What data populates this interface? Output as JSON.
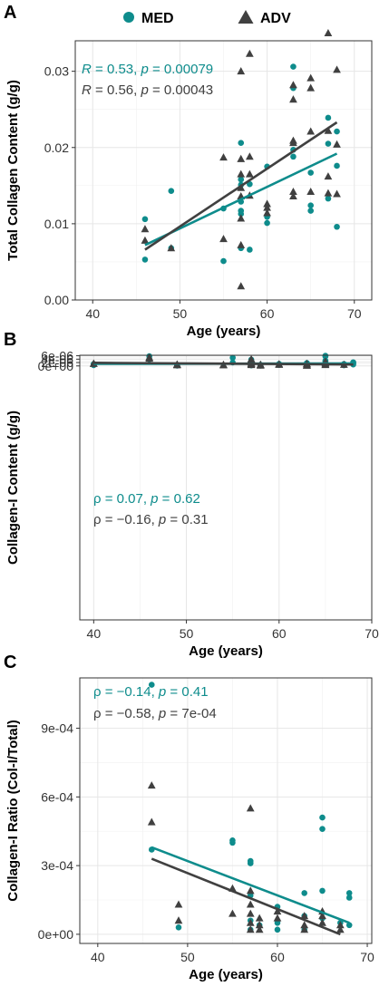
{
  "legend": {
    "items": [
      {
        "label": "MED",
        "marker": "circle",
        "color": "#0E8C8C"
      },
      {
        "label": "ADV",
        "marker": "triangle",
        "color": "#404040"
      }
    ]
  },
  "colors": {
    "med": "#0E8C8C",
    "adv": "#404040",
    "grid": "#e6e6e6"
  },
  "chart_data": [
    {
      "panel": "A",
      "type": "scatter",
      "xlabel": "Age (years)",
      "ylabel": "Total Collagen Content (g/g)",
      "xlim": [
        38,
        72
      ],
      "ylim": [
        0,
        0.034
      ],
      "xticks": [
        40,
        50,
        60,
        70
      ],
      "xtick_labels": [
        "40",
        "50",
        "60",
        "70"
      ],
      "yticks": [
        0,
        0.01,
        0.02,
        0.03
      ],
      "ytick_labels": [
        "0.00",
        "0.01",
        "0.02",
        "0.03"
      ],
      "annotations": [
        {
          "series": "MED",
          "parts": [
            {
              "t": "R",
              "i": true
            },
            {
              "t": " = 0.53, "
            },
            {
              "t": "p",
              "i": true
            },
            {
              "t": " = 0.00079"
            }
          ]
        },
        {
          "series": "ADV",
          "parts": [
            {
              "t": "R",
              "i": true
            },
            {
              "t": " = 0.56, "
            },
            {
              "t": "p",
              "i": true
            },
            {
              "t": " = 0.00043"
            }
          ]
        }
      ],
      "series": [
        {
          "name": "MED",
          "marker": "circle",
          "points": [
            [
              46,
              0.0106
            ],
            [
              46,
              0.0053
            ],
            [
              49,
              0.0143
            ],
            [
              49,
              0.0068
            ],
            [
              55,
              0.0051
            ],
            [
              55,
              0.012
            ],
            [
              57,
              0.0206
            ],
            [
              57,
              0.0151
            ],
            [
              57,
              0.0129
            ],
            [
              57,
              0.0117
            ],
            [
              57,
              0.0113
            ],
            [
              57,
              0.0068
            ],
            [
              57,
              0.0158
            ],
            [
              58,
              0.0152
            ],
            [
              58,
              0.0066
            ],
            [
              60,
              0.0175
            ],
            [
              60,
              0.0109
            ],
            [
              60,
              0.0101
            ],
            [
              63,
              0.0306
            ],
            [
              63,
              0.0278
            ],
            [
              63,
              0.0197
            ],
            [
              63,
              0.0188
            ],
            [
              65,
              0.0167
            ],
            [
              65,
              0.0124
            ],
            [
              65,
              0.0117
            ],
            [
              67,
              0.0239
            ],
            [
              67,
              0.0205
            ],
            [
              67,
              0.0133
            ],
            [
              68,
              0.0221
            ],
            [
              68,
              0.0176
            ],
            [
              68,
              0.0096
            ]
          ],
          "fit": [
            [
              46,
              0.0072
            ],
            [
              68,
              0.0192
            ]
          ]
        },
        {
          "name": "ADV",
          "marker": "triangle",
          "points": [
            [
              46,
              0.0093
            ],
            [
              46,
              0.0078
            ],
            [
              49,
              0.0068
            ],
            [
              55,
              0.0187
            ],
            [
              55,
              0.008
            ],
            [
              57,
              0.03
            ],
            [
              57,
              0.0185
            ],
            [
              57,
              0.0165
            ],
            [
              57,
              0.0147
            ],
            [
              57,
              0.0136
            ],
            [
              57,
              0.0107
            ],
            [
              57,
              0.0072
            ],
            [
              57,
              0.0018
            ],
            [
              58,
              0.0323
            ],
            [
              58,
              0.0188
            ],
            [
              58,
              0.0165
            ],
            [
              58,
              0.0137
            ],
            [
              60,
              0.0126
            ],
            [
              60,
              0.0121
            ],
            [
              60,
              0.0114
            ],
            [
              63,
              0.0282
            ],
            [
              63,
              0.0263
            ],
            [
              63,
              0.0209
            ],
            [
              63,
              0.0206
            ],
            [
              63,
              0.0142
            ],
            [
              63,
              0.0136
            ],
            [
              65,
              0.0291
            ],
            [
              65,
              0.0278
            ],
            [
              65,
              0.0221
            ],
            [
              65,
              0.0142
            ],
            [
              67,
              0.035
            ],
            [
              67,
              0.0222
            ],
            [
              67,
              0.0162
            ],
            [
              67,
              0.014
            ],
            [
              68,
              0.0302
            ],
            [
              68,
              0.0204
            ],
            [
              68,
              0.0139
            ]
          ],
          "fit": [
            [
              46,
              0.0066
            ],
            [
              68,
              0.0233
            ]
          ]
        }
      ]
    },
    {
      "panel": "B",
      "type": "scatter",
      "xlabel": "Age (years)",
      "ylabel": "Collagen-I Content (g/g)",
      "xlim": [
        38.5,
        70
      ],
      "ylim": [
        -0.00015,
        6.3e-06
      ],
      "xticks": [
        40,
        50,
        60,
        70
      ],
      "xtick_labels": [
        "40",
        "50",
        "60",
        "70"
      ],
      "yticks": [
        0,
        2e-06,
        4e-06,
        6e-06
      ],
      "ytick_labels": [
        "0e+00",
        "2e-06",
        "4e-06",
        "6e-06"
      ],
      "annotations": [
        {
          "series": "MED",
          "parts": [
            {
              "t": "ρ = 0.07, "
            },
            {
              "t": "p",
              "i": true
            },
            {
              "t": " = 0.62"
            }
          ]
        },
        {
          "series": "ADV",
          "parts": [
            {
              "t": "ρ = −0.16, "
            },
            {
              "t": "p",
              "i": true
            },
            {
              "t": " = 0.31"
            }
          ]
        }
      ],
      "series": [
        {
          "name": "MED",
          "marker": "circle",
          "points": [
            [
              40,
              1.1e-06
            ],
            [
              40,
              9e-07
            ],
            [
              40,
              4.5e-07
            ],
            [
              46,
              5.75e-06
            ],
            [
              46,
              3.95e-06
            ],
            [
              49,
              3.8e-07
            ],
            [
              49,
              2e-07
            ],
            [
              55,
              4.85e-06
            ],
            [
              55,
              2.05e-06
            ],
            [
              57,
              3.72e-06
            ],
            [
              57,
              2.05e-06
            ],
            [
              57,
              1.1e-06
            ],
            [
              57,
              6e-07
            ],
            [
              57,
              3e-07
            ],
            [
              58,
              6.5e-07
            ],
            [
              58,
              2e-07
            ],
            [
              60,
              1.2e-06
            ],
            [
              60,
              6e-07
            ],
            [
              63,
              1.7e-06
            ],
            [
              63,
              1.2e-06
            ],
            [
              63,
              5e-07
            ],
            [
              65,
              5.98e-06
            ],
            [
              65,
              5.65e-06
            ],
            [
              65,
              3.05e-06
            ],
            [
              65,
              2.4e-06
            ],
            [
              67,
              1.15e-06
            ],
            [
              67,
              7e-07
            ],
            [
              67,
              4e-07
            ],
            [
              68,
              2.15e-06
            ],
            [
              68,
              1.7e-06
            ],
            [
              68,
              8.5e-07
            ]
          ],
          "fit": [
            [
              40,
              1.22e-06
            ],
            [
              68,
              1.43e-06
            ]
          ]
        },
        {
          "name": "ADV",
          "marker": "triangle",
          "points": [
            [
              40,
              1.4e-06
            ],
            [
              40,
              1.25e-06
            ],
            [
              46,
              4.98e-06
            ],
            [
              46,
              4.35e-06
            ],
            [
              49,
              8.8e-07
            ],
            [
              49,
              7.5e-07
            ],
            [
              49,
              6.3e-07
            ],
            [
              49,
              4.8e-07
            ],
            [
              54,
              6.8e-07
            ],
            [
              54,
              5.5e-07
            ],
            [
              54,
              4.5e-07
            ],
            [
              57,
              3.9e-06
            ],
            [
              57,
              3.75e-06
            ],
            [
              57,
              2.8e-06
            ],
            [
              57,
              2.3e-06
            ],
            [
              57,
              1.55e-06
            ],
            [
              57,
              1.2e-06
            ],
            [
              57,
              8e-07
            ],
            [
              57,
              6e-07
            ],
            [
              58,
              7.5e-07
            ],
            [
              58,
              6e-07
            ],
            [
              58,
              4.2e-07
            ],
            [
              58,
              2.8e-07
            ],
            [
              60,
              1.05e-06
            ],
            [
              60,
              9e-07
            ],
            [
              60,
              7e-07
            ],
            [
              63,
              1.3e-06
            ],
            [
              63,
              1.05e-06
            ],
            [
              63,
              5.5e-07
            ],
            [
              63,
              3.5e-07
            ],
            [
              63,
              2e-07
            ],
            [
              65,
              2.62e-06
            ],
            [
              65,
              2.05e-06
            ],
            [
              65,
              1.6e-06
            ],
            [
              65,
              1e-06
            ],
            [
              65,
              5.8e-07
            ],
            [
              67,
              7e-07
            ]
          ],
          "fit": [
            [
              40,
              1.83e-06
            ],
            [
              68,
              8.5e-07
            ]
          ]
        }
      ]
    },
    {
      "panel": "C",
      "type": "scatter",
      "xlabel": "Age (years)",
      "ylabel": "Collagen-I Ratio (Col-I/Total)",
      "xlim": [
        38,
        70.5
      ],
      "ylim": [
        -4e-05,
        0.00112
      ],
      "xticks": [
        40,
        50,
        60,
        70
      ],
      "xtick_labels": [
        "40",
        "50",
        "60",
        "70"
      ],
      "yticks": [
        0,
        0.0003,
        0.0006,
        0.0009
      ],
      "ytick_labels": [
        "0e+00",
        "3e-04",
        "6e-04",
        "9e-04"
      ],
      "annotations": [
        {
          "series": "MED",
          "parts": [
            {
              "t": "ρ = −0.14, "
            },
            {
              "t": "p",
              "i": true
            },
            {
              "t": " = 0.41"
            }
          ]
        },
        {
          "series": "ADV",
          "parts": [
            {
              "t": "ρ = −0.58, "
            },
            {
              "t": "p",
              "i": true
            },
            {
              "t": " = 7e-04"
            }
          ]
        }
      ],
      "series": [
        {
          "name": "MED",
          "marker": "circle",
          "points": [
            [
              46,
              0.00109
            ],
            [
              46,
              0.00037
            ],
            [
              49,
              3e-05
            ],
            [
              55,
              0.00041
            ],
            [
              55,
              0.0004
            ],
            [
              57,
              0.00032
            ],
            [
              57,
              0.00031
            ],
            [
              57,
              0.00017
            ],
            [
              57,
              6e-05
            ],
            [
              57,
              2e-05
            ],
            [
              58,
              4e-05
            ],
            [
              60,
              0.00012
            ],
            [
              60,
              5e-05
            ],
            [
              60,
              2e-05
            ],
            [
              63,
              0.00018
            ],
            [
              63,
              8e-05
            ],
            [
              63,
              2e-05
            ],
            [
              65,
              0.00051
            ],
            [
              65,
              0.00046
            ],
            [
              65,
              0.00019
            ],
            [
              65,
              7e-05
            ],
            [
              67,
              5e-05
            ],
            [
              68,
              0.00018
            ],
            [
              68,
              0.00016
            ],
            [
              68,
              4e-05
            ]
          ],
          "fit": [
            [
              46,
              0.00038
            ],
            [
              68,
              5e-05
            ]
          ]
        },
        {
          "name": "ADV",
          "marker": "triangle",
          "points": [
            [
              46,
              0.00065
            ],
            [
              46,
              0.00049
            ],
            [
              49,
              0.00013
            ],
            [
              49,
              6e-05
            ],
            [
              55,
              0.0002
            ],
            [
              55,
              9e-05
            ],
            [
              57,
              0.00055
            ],
            [
              57,
              0.00019
            ],
            [
              57,
              0.00013
            ],
            [
              57,
              9e-05
            ],
            [
              57,
              5e-05
            ],
            [
              57,
              2e-05
            ],
            [
              58,
              7e-05
            ],
            [
              58,
              4e-05
            ],
            [
              58,
              2e-05
            ],
            [
              60,
              0.0001
            ],
            [
              60,
              7e-05
            ],
            [
              63,
              8e-05
            ],
            [
              63,
              4e-05
            ],
            [
              63,
              2e-05
            ],
            [
              65,
              0.0001
            ],
            [
              65,
              8e-05
            ],
            [
              65,
              5e-05
            ],
            [
              67,
              4e-05
            ],
            [
              67,
              2e-05
            ]
          ],
          "fit": [
            [
              46,
              0.00033
            ],
            [
              67,
              0.0
            ]
          ]
        }
      ]
    }
  ]
}
